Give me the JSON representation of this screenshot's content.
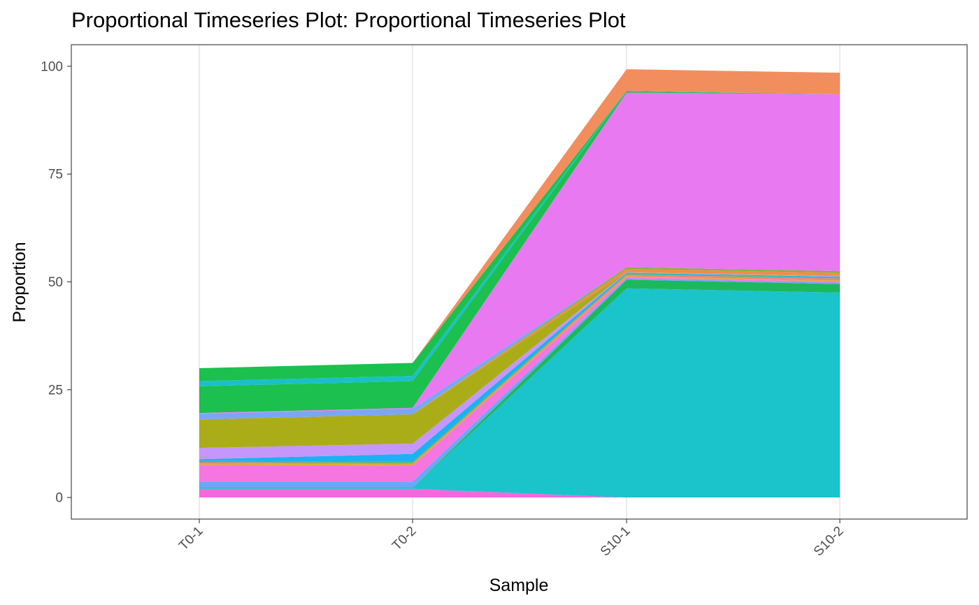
{
  "chart_data": {
    "type": "area",
    "title": "Proportional Timeseries Plot: Proportional Timeseries Plot",
    "xlabel": "Sample",
    "ylabel": "Proportion",
    "categories": [
      "T0-1",
      "T0-2",
      "S10-1",
      "S10-2"
    ],
    "ylim": [
      -5,
      105
    ],
    "yticks": [
      0,
      25,
      50,
      75,
      100
    ],
    "grid": "vertical-major",
    "legend": "none",
    "series": [
      {
        "color": "#F568DD",
        "values": [
          2.0,
          2.0,
          0.0,
          0.0
        ]
      },
      {
        "color": "#1BC3CB",
        "values": [
          0.3,
          0.3,
          48.5,
          47.5
        ]
      },
      {
        "color": "#1EB85C",
        "values": [
          0.0,
          0.0,
          2.0,
          2.0
        ]
      },
      {
        "color": "#6BA6F9",
        "values": [
          1.4,
          1.4,
          0.3,
          0.3
        ]
      },
      {
        "color": "#F576E1",
        "values": [
          3.9,
          3.7,
          0.3,
          0.3
        ]
      },
      {
        "color": "#D9B019",
        "values": [
          0.3,
          0.3,
          0.2,
          0.2
        ]
      },
      {
        "color": "#F3807E",
        "values": [
          0.3,
          0.3,
          0.4,
          0.5
        ]
      },
      {
        "color": "#39C071",
        "values": [
          0.3,
          0.3,
          0.2,
          0.2
        ]
      },
      {
        "color": "#1AB2F0",
        "values": [
          0.4,
          1.8,
          0.2,
          0.2
        ]
      },
      {
        "color": "#C596FB",
        "values": [
          2.6,
          2.4,
          0.1,
          0.1
        ]
      },
      {
        "color": "#AAAD18",
        "values": [
          6.6,
          6.8,
          0.1,
          0.1
        ]
      },
      {
        "color": "#F28A4F",
        "values": [
          0.0,
          0.0,
          0.7,
          0.7
        ]
      },
      {
        "color": "#7FB436",
        "values": [
          0.0,
          0.0,
          0.4,
          0.4
        ]
      },
      {
        "color": "#7AA6F5",
        "values": [
          1.3,
          1.3,
          0.0,
          0.0
        ]
      },
      {
        "color": "#E879F1",
        "values": [
          0.2,
          0.2,
          40.5,
          41.0
        ]
      },
      {
        "color": "#1BC04E",
        "values": [
          6.2,
          6.2,
          0.3,
          0.0
        ]
      },
      {
        "color": "#1BBFCA",
        "values": [
          1.2,
          1.2,
          0.1,
          0.0
        ]
      },
      {
        "color": "#1BC04E",
        "values": [
          3.0,
          3.0,
          0.0,
          0.0
        ]
      },
      {
        "color": "#F28D5E",
        "values": [
          0.0,
          0.0,
          5.0,
          5.0
        ]
      }
    ]
  }
}
